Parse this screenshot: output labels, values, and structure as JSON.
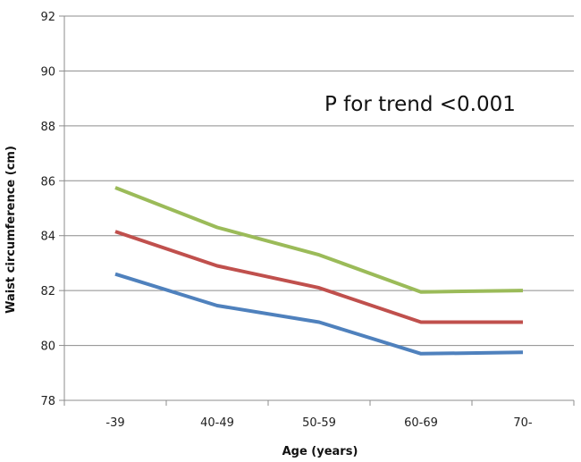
{
  "chart_data": {
    "type": "line",
    "title": "",
    "xlabel": "Age (years)",
    "ylabel": "Waist circumference (cm)",
    "categories": [
      "-39",
      "40-49",
      "50-59",
      "60-69",
      "70-"
    ],
    "ylim": [
      78,
      92
    ],
    "yticks": [
      "78",
      "80",
      "82",
      "84",
      "86",
      "88",
      "90",
      "92"
    ],
    "grid": true,
    "legend": "none",
    "annotation": "P for trend <0.001",
    "series": [
      {
        "color": "#9bbb59",
        "values": [
          85.75,
          84.3,
          83.3,
          81.95,
          82.0
        ]
      },
      {
        "color": "#c0504d",
        "values": [
          84.15,
          82.9,
          82.1,
          80.85,
          80.85
        ]
      },
      {
        "color": "#4f81bd",
        "values": [
          82.6,
          81.45,
          80.85,
          79.7,
          79.75
        ]
      }
    ]
  }
}
